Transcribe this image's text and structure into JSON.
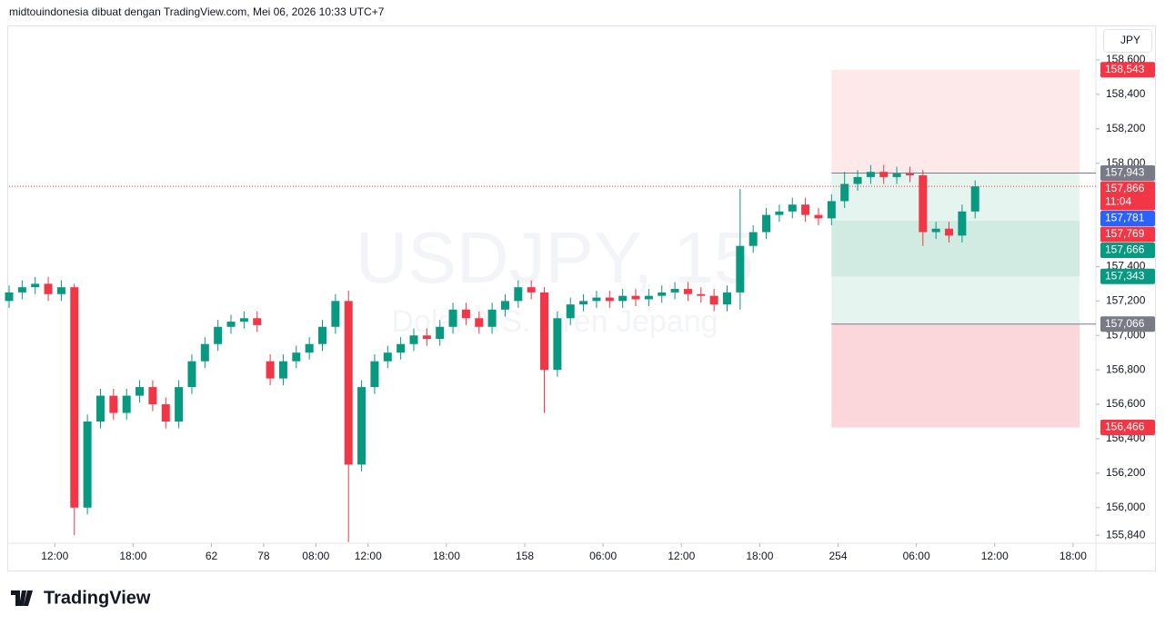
{
  "header": "midtouindonesia dibuat dengan TradingView.com, Mei 06, 2026 10:33 UTC+7",
  "currency_button": "JPY",
  "logo": "TradingView",
  "chart_data": {
    "type": "candlestick",
    "watermark": "USDJPY, 15",
    "watermark_subtitle": "Dolar A.S. / Yen Jepang",
    "up_color": "#089981",
    "down_color": "#f23645",
    "xlim": [
      0,
      333
    ],
    "ylim": [
      155793,
      158790
    ],
    "xticks": [
      {
        "value": 14,
        "label": "12:00"
      },
      {
        "value": 38,
        "label": "18:00"
      },
      62,
      78,
      {
        "value": 94,
        "label": "08:00"
      },
      {
        "value": 110,
        "label": "12:00"
      },
      {
        "value": 134,
        "label": "18:00"
      },
      158,
      {
        "value": 182,
        "label": "06:00"
      },
      {
        "value": 206,
        "label": "12:00"
      },
      {
        "value": 230,
        "label": "18:00"
      },
      254,
      {
        "value": 278,
        "label": "06:00"
      },
      {
        "value": 302,
        "label": "12:00"
      },
      {
        "value": 326,
        "label": "18:00"
      }
    ],
    "yticks": [
      {
        "value": 158600,
        "label": "158,600"
      },
      {
        "value": 158400,
        "label": "158,400"
      },
      {
        "value": 158200,
        "label": "158,200"
      },
      {
        "value": 158000,
        "label": "158,000"
      },
      {
        "value": 157400,
        "label": "157,400"
      },
      {
        "value": 157200,
        "label": "157,200"
      },
      {
        "value": 157000,
        "label": "157,000"
      },
      {
        "value": 156800,
        "label": "156,800"
      },
      {
        "value": 156600,
        "label": "156,600"
      },
      {
        "value": 156400,
        "label": "156,400"
      },
      {
        "value": 156200,
        "label": "156,200"
      },
      {
        "value": 156000,
        "label": "156,000"
      },
      {
        "value": 155840,
        "label": "155,840"
      }
    ],
    "x": [
      0,
      4,
      8,
      12,
      16,
      20,
      24,
      28,
      32,
      36,
      40,
      44,
      48,
      52,
      56,
      60,
      64,
      68,
      72,
      76,
      80,
      84,
      88,
      92,
      96,
      100,
      104,
      108,
      112,
      116,
      120,
      124,
      128,
      132,
      136,
      140,
      144,
      148,
      152,
      156,
      160,
      164,
      168,
      172,
      176,
      180,
      184,
      188,
      192,
      196,
      200,
      204,
      208,
      212,
      216,
      220,
      224,
      228,
      232,
      236,
      240,
      244,
      248,
      252,
      256,
      260,
      264,
      268,
      272,
      276,
      280,
      284,
      288,
      292,
      296
    ],
    "open": [
      157200,
      157250,
      157280,
      157300,
      157240,
      157280,
      156000,
      156500,
      156650,
      156550,
      156650,
      156700,
      156600,
      156500,
      156700,
      156850,
      156950,
      157050,
      157080,
      157100,
      156850,
      156750,
      156850,
      156900,
      156950,
      157050,
      157200,
      156250,
      156700,
      156850,
      156900,
      156950,
      157000,
      156980,
      157050,
      157150,
      157100,
      157050,
      157150,
      157200,
      157280,
      157250,
      156800,
      157100,
      157180,
      157200,
      157220,
      157200,
      157230,
      157210,
      157230,
      157250,
      157270,
      157240,
      157230,
      157180,
      157250,
      157520,
      157600,
      157700,
      157720,
      157760,
      157700,
      157680,
      157780,
      157880,
      157920,
      157950,
      157920,
      157940,
      157930,
      157600,
      157620,
      157580,
      157720
    ],
    "high": [
      157290,
      157320,
      157340,
      157340,
      157320,
      157300,
      156540,
      156690,
      156690,
      156690,
      156740,
      156740,
      156640,
      156740,
      156890,
      156990,
      157090,
      157120,
      157140,
      157140,
      156890,
      156890,
      156940,
      156990,
      157090,
      157240,
      157260,
      156740,
      156890,
      156940,
      156990,
      157040,
      157040,
      157090,
      157190,
      157190,
      157140,
      157190,
      157240,
      157320,
      157320,
      157280,
      157140,
      157220,
      157240,
      157260,
      157260,
      157270,
      157270,
      157270,
      157290,
      157310,
      157310,
      157280,
      157270,
      157290,
      157850,
      157640,
      157740,
      157760,
      157800,
      157800,
      157740,
      157820,
      157950,
      157960,
      157990,
      157990,
      157980,
      157980,
      157960,
      157660,
      157660,
      157760,
      157900
    ],
    "low": [
      157160,
      157210,
      157240,
      157200,
      157200,
      155840,
      155960,
      156460,
      156510,
      156510,
      156610,
      156560,
      156460,
      156460,
      156660,
      156810,
      156910,
      157010,
      157040,
      157020,
      156710,
      156710,
      156810,
      156860,
      156910,
      157010,
      155800,
      156210,
      156660,
      156810,
      156860,
      156910,
      156940,
      156940,
      157010,
      157060,
      157010,
      157010,
      157110,
      157160,
      157210,
      156550,
      156760,
      157060,
      157140,
      157160,
      157160,
      157160,
      157170,
      157170,
      157190,
      157210,
      157200,
      157190,
      157140,
      157140,
      157150,
      157480,
      157560,
      157660,
      157680,
      157660,
      157640,
      157640,
      157740,
      157840,
      157880,
      157880,
      157880,
      157890,
      157520,
      157560,
      157540,
      157540,
      157680
    ],
    "close": [
      157250,
      157280,
      157300,
      157240,
      157280,
      156000,
      156500,
      156650,
      156550,
      156650,
      156700,
      156600,
      156500,
      156700,
      156850,
      156950,
      157050,
      157080,
      157100,
      157060,
      156750,
      156850,
      156900,
      156950,
      157050,
      157200,
      156250,
      156700,
      156850,
      156900,
      156950,
      157000,
      156980,
      157050,
      157150,
      157100,
      157050,
      157150,
      157200,
      157280,
      157250,
      156800,
      157100,
      157180,
      157200,
      157220,
      157200,
      157230,
      157210,
      157230,
      157250,
      157270,
      157240,
      157230,
      157180,
      157250,
      157520,
      157600,
      157700,
      157720,
      157760,
      157700,
      157680,
      157780,
      157880,
      157920,
      157950,
      157920,
      157940,
      157930,
      157600,
      157620,
      157580,
      157720,
      157866
    ],
    "last_price": 157866,
    "last_price_color": "#f23645",
    "zones": [
      {
        "from": 252,
        "to": 328,
        "top": 158543,
        "bottom": 157943,
        "color": "#fde9ea"
      },
      {
        "from": 252,
        "to": 328,
        "top": 157943,
        "bottom": 157066,
        "color": "#e5f4ef"
      },
      {
        "from": 252,
        "to": 328,
        "top": 157666,
        "bottom": 157343,
        "color": "#d1ebe3"
      },
      {
        "from": 252,
        "to": 328,
        "top": 157066,
        "bottom": 156466,
        "color": "#fbd7dc"
      }
    ],
    "price_labels": [
      {
        "value": 158543,
        "label": "158,543",
        "color": "#f23645"
      },
      {
        "value": 157943,
        "label": "157,943",
        "color": "#787b86"
      },
      {
        "value": 157866,
        "label": "157,866",
        "color": "#f23645",
        "countdown": "11:04"
      },
      {
        "value": 157781,
        "label": "157,781",
        "color": "#2962ff"
      },
      {
        "value": 157769,
        "label": "157,769",
        "color": "#f23645"
      },
      {
        "value": 157666,
        "label": "157,666",
        "color": "#089981"
      },
      {
        "value": 157343,
        "label": "157,343",
        "color": "#089981"
      },
      {
        "value": 157066,
        "label": "157,066",
        "color": "#787b86"
      },
      {
        "value": 156466,
        "label": "156,466",
        "color": "#f23645"
      }
    ]
  }
}
